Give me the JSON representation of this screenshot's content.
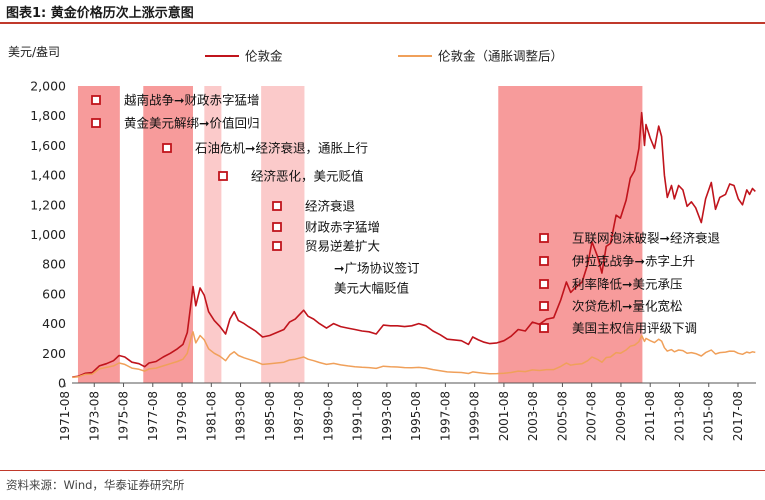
{
  "figure": {
    "title": "图表1:   黄金价格历次上涨示意图",
    "source": "资料来源：Wind，华泰证券研究所"
  },
  "chart_data": {
    "type": "line",
    "ylabel": "美元/盎司",
    "ylim": [
      0,
      2000
    ],
    "yticks": [
      0,
      200,
      400,
      600,
      800,
      1000,
      1200,
      1400,
      1600,
      1800,
      2000
    ],
    "ytick_labels": [
      "0",
      "200",
      "400",
      "600",
      "800",
      "1,000",
      "1,200",
      "1,400",
      "1,600",
      "1,800",
      "2,000"
    ],
    "xlim": [
      1971.58,
      2019.75
    ],
    "x_tick_labels": [
      "1971-08",
      "1973-08",
      "1975-08",
      "1977-08",
      "1979-08",
      "1981-08",
      "1983-08",
      "1985-08",
      "1987-08",
      "1989-08",
      "1991-08",
      "1993-08",
      "1995-08",
      "1997-08",
      "1999-08",
      "2001-08",
      "2003-08",
      "2005-08",
      "2007-08",
      "2009-08",
      "2011-08",
      "2013-08",
      "2015-08",
      "2017-08"
    ],
    "legend_position": "top",
    "colors": {
      "nominal": "#c0141c",
      "real": "#f0a05a",
      "shade_dark": "#f79b9b",
      "shade_light": "#fbcaca",
      "marker": "#c0141c",
      "grid_accent": "#c0392b"
    },
    "shaded_periods": [
      {
        "start": 1972.0,
        "end": 1974.95,
        "tone": "dark"
      },
      {
        "start": 1976.6,
        "end": 1980.1,
        "tone": "dark"
      },
      {
        "start": 1980.9,
        "end": 1982.1,
        "tone": "light"
      },
      {
        "start": 1984.9,
        "end": 1987.95,
        "tone": "light"
      },
      {
        "start": 2001.6,
        "end": 2011.75,
        "tone": "dark"
      }
    ],
    "series": [
      {
        "name": "伦敦金",
        "points": [
          [
            1971.6,
            40
          ],
          [
            1972.0,
            45
          ],
          [
            1972.5,
            65
          ],
          [
            1973.0,
            70
          ],
          [
            1973.5,
            115
          ],
          [
            1974.0,
            130
          ],
          [
            1974.5,
            150
          ],
          [
            1974.9,
            185
          ],
          [
            1975.3,
            175
          ],
          [
            1975.8,
            140
          ],
          [
            1976.3,
            130
          ],
          [
            1976.7,
            110
          ],
          [
            1977.0,
            135
          ],
          [
            1977.5,
            145
          ],
          [
            1978.0,
            175
          ],
          [
            1978.5,
            200
          ],
          [
            1979.0,
            230
          ],
          [
            1979.4,
            260
          ],
          [
            1979.7,
            340
          ],
          [
            1980.0,
            570
          ],
          [
            1980.1,
            650
          ],
          [
            1980.3,
            520
          ],
          [
            1980.6,
            640
          ],
          [
            1980.9,
            590
          ],
          [
            1981.2,
            480
          ],
          [
            1981.6,
            420
          ],
          [
            1982.0,
            380
          ],
          [
            1982.4,
            330
          ],
          [
            1982.7,
            430
          ],
          [
            1983.0,
            480
          ],
          [
            1983.3,
            420
          ],
          [
            1983.7,
            400
          ],
          [
            1984.0,
            380
          ],
          [
            1984.5,
            350
          ],
          [
            1985.0,
            310
          ],
          [
            1985.5,
            320
          ],
          [
            1986.0,
            340
          ],
          [
            1986.5,
            360
          ],
          [
            1986.9,
            410
          ],
          [
            1987.3,
            430
          ],
          [
            1987.9,
            490
          ],
          [
            1988.2,
            450
          ],
          [
            1988.6,
            430
          ],
          [
            1989.0,
            400
          ],
          [
            1989.5,
            370
          ],
          [
            1990.0,
            400
          ],
          [
            1990.5,
            380
          ],
          [
            1991.0,
            370
          ],
          [
            1991.5,
            360
          ],
          [
            1992.0,
            350
          ],
          [
            1992.5,
            345
          ],
          [
            1993.0,
            330
          ],
          [
            1993.5,
            390
          ],
          [
            1994.0,
            385
          ],
          [
            1994.5,
            385
          ],
          [
            1995.0,
            380
          ],
          [
            1995.5,
            385
          ],
          [
            1996.0,
            400
          ],
          [
            1996.5,
            385
          ],
          [
            1997.0,
            350
          ],
          [
            1997.5,
            325
          ],
          [
            1998.0,
            295
          ],
          [
            1998.5,
            290
          ],
          [
            1999.0,
            285
          ],
          [
            1999.5,
            260
          ],
          [
            1999.8,
            310
          ],
          [
            2000.2,
            290
          ],
          [
            2000.6,
            275
          ],
          [
            2001.0,
            265
          ],
          [
            2001.5,
            270
          ],
          [
            2002.0,
            285
          ],
          [
            2002.5,
            315
          ],
          [
            2003.0,
            360
          ],
          [
            2003.5,
            350
          ],
          [
            2004.0,
            410
          ],
          [
            2004.5,
            395
          ],
          [
            2005.0,
            430
          ],
          [
            2005.5,
            440
          ],
          [
            2006.0,
            560
          ],
          [
            2006.4,
            680
          ],
          [
            2006.7,
            610
          ],
          [
            2007.0,
            640
          ],
          [
            2007.5,
            680
          ],
          [
            2007.9,
            800
          ],
          [
            2008.2,
            950
          ],
          [
            2008.6,
            850
          ],
          [
            2008.9,
            740
          ],
          [
            2009.2,
            920
          ],
          [
            2009.5,
            940
          ],
          [
            2009.9,
            1130
          ],
          [
            2010.2,
            1110
          ],
          [
            2010.6,
            1230
          ],
          [
            2010.9,
            1380
          ],
          [
            2011.2,
            1430
          ],
          [
            2011.5,
            1580
          ],
          [
            2011.7,
            1820
          ],
          [
            2011.9,
            1600
          ],
          [
            2012.0,
            1740
          ],
          [
            2012.3,
            1650
          ],
          [
            2012.6,
            1580
          ],
          [
            2012.9,
            1730
          ],
          [
            2013.1,
            1660
          ],
          [
            2013.3,
            1400
          ],
          [
            2013.5,
            1250
          ],
          [
            2013.8,
            1330
          ],
          [
            2014.0,
            1240
          ],
          [
            2014.3,
            1330
          ],
          [
            2014.6,
            1300
          ],
          [
            2014.9,
            1190
          ],
          [
            2015.2,
            1220
          ],
          [
            2015.5,
            1180
          ],
          [
            2015.9,
            1080
          ],
          [
            2016.2,
            1240
          ],
          [
            2016.6,
            1350
          ],
          [
            2016.9,
            1170
          ],
          [
            2017.2,
            1250
          ],
          [
            2017.6,
            1270
          ],
          [
            2017.9,
            1340
          ],
          [
            2018.2,
            1330
          ],
          [
            2018.5,
            1240
          ],
          [
            2018.8,
            1200
          ],
          [
            2019.1,
            1300
          ],
          [
            2019.3,
            1270
          ],
          [
            2019.5,
            1310
          ],
          [
            2019.7,
            1290
          ]
        ]
      },
      {
        "name": "伦敦金（通胀调整后）",
        "points": [
          [
            1971.6,
            38
          ],
          [
            1972.0,
            42
          ],
          [
            1972.5,
            58
          ],
          [
            1973.0,
            60
          ],
          [
            1973.5,
            95
          ],
          [
            1974.0,
            105
          ],
          [
            1974.5,
            115
          ],
          [
            1974.9,
            135
          ],
          [
            1975.3,
            125
          ],
          [
            1975.8,
            100
          ],
          [
            1976.3,
            92
          ],
          [
            1976.7,
            80
          ],
          [
            1977.0,
            95
          ],
          [
            1977.5,
            100
          ],
          [
            1978.0,
            115
          ],
          [
            1978.5,
            130
          ],
          [
            1979.0,
            145
          ],
          [
            1979.4,
            160
          ],
          [
            1979.7,
            200
          ],
          [
            1980.0,
            320
          ],
          [
            1980.1,
            345
          ],
          [
            1980.3,
            270
          ],
          [
            1980.6,
            320
          ],
          [
            1980.9,
            290
          ],
          [
            1981.2,
            230
          ],
          [
            1981.6,
            200
          ],
          [
            1982.0,
            180
          ],
          [
            1982.4,
            150
          ],
          [
            1982.7,
            190
          ],
          [
            1983.0,
            210
          ],
          [
            1983.3,
            185
          ],
          [
            1983.7,
            170
          ],
          [
            1984.0,
            160
          ],
          [
            1984.5,
            145
          ],
          [
            1985.0,
            125
          ],
          [
            1985.5,
            130
          ],
          [
            1986.0,
            135
          ],
          [
            1986.5,
            140
          ],
          [
            1986.9,
            155
          ],
          [
            1987.3,
            160
          ],
          [
            1987.9,
            175
          ],
          [
            1988.2,
            160
          ],
          [
            1988.6,
            150
          ],
          [
            1989.0,
            138
          ],
          [
            1989.5,
            125
          ],
          [
            1990.0,
            132
          ],
          [
            1990.5,
            122
          ],
          [
            1991.0,
            115
          ],
          [
            1991.5,
            110
          ],
          [
            1992.0,
            106
          ],
          [
            1992.5,
            104
          ],
          [
            1993.0,
            98
          ],
          [
            1993.5,
            113
          ],
          [
            1994.0,
            110
          ],
          [
            1994.5,
            108
          ],
          [
            1995.0,
            104
          ],
          [
            1995.5,
            103
          ],
          [
            1996.0,
            105
          ],
          [
            1996.5,
            100
          ],
          [
            1997.0,
            90
          ],
          [
            1997.5,
            83
          ],
          [
            1998.0,
            75
          ],
          [
            1998.5,
            73
          ],
          [
            1999.0,
            71
          ],
          [
            1999.5,
            64
          ],
          [
            1999.8,
            75
          ],
          [
            2000.2,
            70
          ],
          [
            2000.6,
            66
          ],
          [
            2001.0,
            62
          ],
          [
            2001.5,
            63
          ],
          [
            2002.0,
            66
          ],
          [
            2002.5,
            71
          ],
          [
            2003.0,
            80
          ],
          [
            2003.5,
            77
          ],
          [
            2004.0,
            88
          ],
          [
            2004.5,
            84
          ],
          [
            2005.0,
            90
          ],
          [
            2005.5,
            90
          ],
          [
            2006.0,
            112
          ],
          [
            2006.4,
            135
          ],
          [
            2006.7,
            120
          ],
          [
            2007.0,
            125
          ],
          [
            2007.5,
            130
          ],
          [
            2007.9,
            150
          ],
          [
            2008.2,
            175
          ],
          [
            2008.6,
            158
          ],
          [
            2008.9,
            140
          ],
          [
            2009.2,
            172
          ],
          [
            2009.5,
            175
          ],
          [
            2009.9,
            205
          ],
          [
            2010.2,
            200
          ],
          [
            2010.6,
            222
          ],
          [
            2010.9,
            248
          ],
          [
            2011.2,
            255
          ],
          [
            2011.5,
            278
          ],
          [
            2011.7,
            320
          ],
          [
            2011.9,
            280
          ],
          [
            2012.0,
            300
          ],
          [
            2012.3,
            285
          ],
          [
            2012.6,
            272
          ],
          [
            2012.9,
            295
          ],
          [
            2013.1,
            282
          ],
          [
            2013.3,
            238
          ],
          [
            2013.5,
            215
          ],
          [
            2013.8,
            225
          ],
          [
            2014.0,
            210
          ],
          [
            2014.3,
            222
          ],
          [
            2014.6,
            218
          ],
          [
            2014.9,
            200
          ],
          [
            2015.2,
            205
          ],
          [
            2015.5,
            198
          ],
          [
            2015.9,
            182
          ],
          [
            2016.2,
            205
          ],
          [
            2016.6,
            222
          ],
          [
            2016.9,
            195
          ],
          [
            2017.2,
            205
          ],
          [
            2017.6,
            208
          ],
          [
            2017.9,
            215
          ],
          [
            2018.2,
            214
          ],
          [
            2018.5,
            200
          ],
          [
            2018.8,
            193
          ],
          [
            2019.1,
            208
          ],
          [
            2019.3,
            203
          ],
          [
            2019.5,
            210
          ],
          [
            2019.7,
            206
          ]
        ]
      }
    ],
    "annotations": [
      {
        "text": "越南战争➞财政赤字猛增",
        "marker": true
      },
      {
        "text": "黄金美元解绑➞价值回归",
        "marker": true
      },
      {
        "text": "石油危机➞经济衰退，通胀上行",
        "marker": true
      },
      {
        "text": "经济恶化，美元贬值",
        "marker": true
      },
      {
        "text": "经济衰退",
        "marker": true
      },
      {
        "text": "财政赤字猛增",
        "marker": true
      },
      {
        "text": "贸易逆差扩大",
        "marker": true
      },
      {
        "text": "➞广场协议签订",
        "marker": false
      },
      {
        "text": "美元大幅贬值",
        "marker": false
      },
      {
        "text": "互联网泡沫破裂➞经济衰退",
        "marker": true
      },
      {
        "text": "伊拉克战争➞赤字上升",
        "marker": true
      },
      {
        "text": "利率降低➞美元承压",
        "marker": true
      },
      {
        "text": "次贷危机➞量化宽松",
        "marker": true
      },
      {
        "text": "美国主权信用评级下调",
        "marker": true
      }
    ]
  }
}
